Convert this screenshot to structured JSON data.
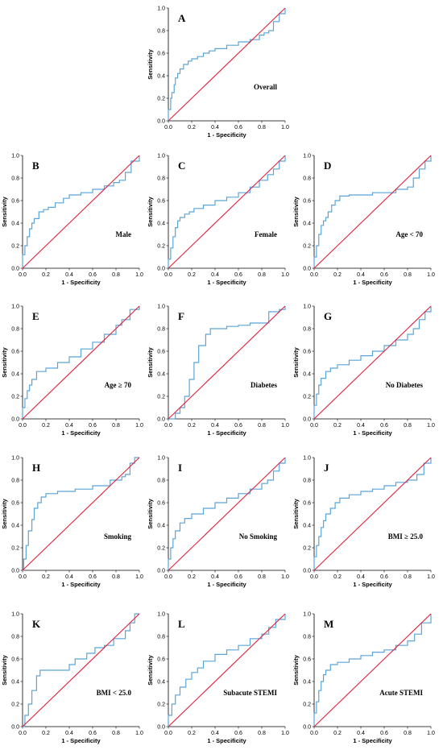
{
  "figure": {
    "colors": {
      "roc": "#5aa5d8",
      "reference": "#e0223c",
      "axis": "#000000"
    },
    "xlabel": "1 - Specificity",
    "ylabel": "Sensitivity"
  },
  "chart_data": [
    {
      "type": "line",
      "panel": "A",
      "label": "Overall",
      "xlabel": "1 - Specificity",
      "ylabel": "Sensitivity",
      "xlim": [
        0,
        1
      ],
      "ylim": [
        0,
        1
      ],
      "xticks": [
        "0.0",
        "0.2",
        "0.4",
        "0.6",
        "0.8",
        "1.0"
      ],
      "yticks": [
        "0.0",
        "0.2",
        "0.4",
        "0.6",
        "0.8",
        "1.0"
      ],
      "series": [
        {
          "role": "roc",
          "x": [
            0,
            0,
            0.02,
            0.03,
            0.05,
            0.06,
            0.08,
            0.1,
            0.13,
            0.17,
            0.2,
            0.25,
            0.3,
            0.35,
            0.4,
            0.5,
            0.6,
            0.7,
            0.78,
            0.82,
            0.86,
            0.9,
            0.95,
            1
          ],
          "y": [
            0,
            0.1,
            0.2,
            0.25,
            0.32,
            0.38,
            0.42,
            0.46,
            0.5,
            0.53,
            0.55,
            0.57,
            0.6,
            0.62,
            0.64,
            0.67,
            0.7,
            0.72,
            0.76,
            0.78,
            0.8,
            0.88,
            0.95,
            1
          ]
        },
        {
          "role": "reference",
          "x": [
            0,
            1
          ],
          "y": [
            0,
            1
          ]
        }
      ]
    },
    {
      "type": "line",
      "panel": "B",
      "label": "Male",
      "xlabel": "1 - Specificity",
      "ylabel": "Sensitivity",
      "xlim": [
        0,
        1
      ],
      "ylim": [
        0,
        1
      ],
      "xticks": [
        "0.0",
        "0.2",
        "0.4",
        "0.6",
        "0.8",
        "1.0"
      ],
      "yticks": [
        "0.0",
        "0.2",
        "0.4",
        "0.6",
        "0.8",
        "1.0"
      ],
      "series": [
        {
          "role": "roc",
          "x": [
            0,
            0,
            0.02,
            0.04,
            0.06,
            0.08,
            0.1,
            0.14,
            0.18,
            0.22,
            0.28,
            0.35,
            0.4,
            0.5,
            0.6,
            0.7,
            0.78,
            0.83,
            0.88,
            0.93,
            1
          ],
          "y": [
            0,
            0.12,
            0.2,
            0.28,
            0.35,
            0.4,
            0.44,
            0.5,
            0.52,
            0.54,
            0.58,
            0.62,
            0.65,
            0.67,
            0.7,
            0.73,
            0.76,
            0.78,
            0.85,
            0.95,
            1
          ]
        },
        {
          "role": "reference",
          "x": [
            0,
            1
          ],
          "y": [
            0,
            1
          ]
        }
      ]
    },
    {
      "type": "line",
      "panel": "C",
      "label": "Female",
      "xlabel": "1 - Specificity",
      "ylabel": "Sensitivity",
      "xlim": [
        0,
        1
      ],
      "ylim": [
        0,
        1
      ],
      "xticks": [
        "0.0",
        "0.2",
        "0.4",
        "0.6",
        "0.8",
        "1.0"
      ],
      "yticks": [
        "0.0",
        "0.2",
        "0.4",
        "0.6",
        "0.8",
        "1.0"
      ],
      "series": [
        {
          "role": "roc",
          "x": [
            0,
            0,
            0.02,
            0.04,
            0.06,
            0.08,
            0.1,
            0.14,
            0.18,
            0.22,
            0.3,
            0.4,
            0.5,
            0.6,
            0.7,
            0.78,
            0.85,
            0.9,
            0.95,
            1
          ],
          "y": [
            0,
            0.08,
            0.18,
            0.28,
            0.36,
            0.42,
            0.45,
            0.48,
            0.5,
            0.53,
            0.56,
            0.6,
            0.63,
            0.67,
            0.72,
            0.78,
            0.83,
            0.88,
            0.95,
            1
          ]
        },
        {
          "role": "reference",
          "x": [
            0,
            1
          ],
          "y": [
            0,
            1
          ]
        }
      ]
    },
    {
      "type": "line",
      "panel": "D",
      "label": "Age < 70",
      "xlabel": "1 - Specificity",
      "ylabel": "Sensitivity",
      "xlim": [
        0,
        1
      ],
      "ylim": [
        0,
        1
      ],
      "xticks": [
        "0.0",
        "0.2",
        "0.4",
        "0.6",
        "0.8",
        "1.0"
      ],
      "yticks": [
        "0.0",
        "0.2",
        "0.4",
        "0.6",
        "0.8",
        "1.0"
      ],
      "series": [
        {
          "role": "roc",
          "x": [
            0,
            0,
            0.02,
            0.04,
            0.06,
            0.08,
            0.1,
            0.12,
            0.15,
            0.18,
            0.22,
            0.3,
            0.5,
            0.7,
            0.8,
            0.85,
            0.9,
            0.95,
            1
          ],
          "y": [
            0,
            0.1,
            0.2,
            0.3,
            0.38,
            0.42,
            0.45,
            0.5,
            0.56,
            0.6,
            0.64,
            0.65,
            0.67,
            0.7,
            0.72,
            0.8,
            0.88,
            0.95,
            1
          ]
        },
        {
          "role": "reference",
          "x": [
            0,
            1
          ],
          "y": [
            0,
            1
          ]
        }
      ]
    },
    {
      "type": "line",
      "panel": "E",
      "label": "Age ≥ 70",
      "xlabel": "1 - Specificity",
      "ylabel": "Sensitivity",
      "xlim": [
        0,
        1
      ],
      "ylim": [
        0,
        1
      ],
      "xticks": [
        "0.0",
        "0.2",
        "0.4",
        "0.6",
        "0.8",
        "1.0"
      ],
      "yticks": [
        "0.0",
        "0.2",
        "0.4",
        "0.6",
        "0.8",
        "1.0"
      ],
      "series": [
        {
          "role": "roc",
          "x": [
            0,
            0,
            0.02,
            0.04,
            0.06,
            0.08,
            0.12,
            0.2,
            0.3,
            0.4,
            0.5,
            0.6,
            0.7,
            0.8,
            0.85,
            0.92,
            1
          ],
          "y": [
            0,
            0.1,
            0.18,
            0.25,
            0.3,
            0.35,
            0.42,
            0.45,
            0.5,
            0.55,
            0.62,
            0.68,
            0.75,
            0.83,
            0.88,
            0.97,
            1
          ]
        },
        {
          "role": "reference",
          "x": [
            0,
            1
          ],
          "y": [
            0,
            1
          ]
        }
      ]
    },
    {
      "type": "line",
      "panel": "F",
      "label": "Diabetes",
      "xlabel": "1 - Specificity",
      "ylabel": "Sensitivity",
      "xlim": [
        0,
        1
      ],
      "ylim": [
        0,
        1
      ],
      "xticks": [
        "0.0",
        "0.2",
        "0.4",
        "0.6",
        "0.8",
        "1.0"
      ],
      "yticks": [
        "0.0",
        "0.2",
        "0.4",
        "0.6",
        "0.8",
        "1.0"
      ],
      "series": [
        {
          "role": "roc",
          "x": [
            0,
            0.06,
            0.1,
            0.14,
            0.18,
            0.22,
            0.26,
            0.32,
            0.36,
            0.5,
            0.6,
            0.7,
            0.86,
            0.95,
            1
          ],
          "y": [
            0,
            0.05,
            0.1,
            0.2,
            0.35,
            0.5,
            0.65,
            0.75,
            0.8,
            0.82,
            0.83,
            0.85,
            0.95,
            0.97,
            1
          ]
        },
        {
          "role": "reference",
          "x": [
            0,
            1
          ],
          "y": [
            0,
            1
          ]
        }
      ]
    },
    {
      "type": "line",
      "panel": "G",
      "label": "No Diabetes",
      "xlabel": "1 - Specificity",
      "ylabel": "Sensitivity",
      "xlim": [
        0,
        1
      ],
      "ylim": [
        0,
        1
      ],
      "xticks": [
        "0.0",
        "0.2",
        "0.4",
        "0.6",
        "0.8",
        "1.0"
      ],
      "yticks": [
        "0.0",
        "0.2",
        "0.4",
        "0.6",
        "0.8",
        "1.0"
      ],
      "series": [
        {
          "role": "roc",
          "x": [
            0,
            0,
            0.02,
            0.04,
            0.06,
            0.1,
            0.14,
            0.2,
            0.3,
            0.4,
            0.5,
            0.6,
            0.7,
            0.8,
            0.85,
            0.9,
            0.95,
            1
          ],
          "y": [
            0,
            0.12,
            0.22,
            0.3,
            0.36,
            0.42,
            0.45,
            0.48,
            0.52,
            0.56,
            0.6,
            0.65,
            0.7,
            0.75,
            0.8,
            0.88,
            0.95,
            1
          ]
        },
        {
          "role": "reference",
          "x": [
            0,
            1
          ],
          "y": [
            0,
            1
          ]
        }
      ]
    },
    {
      "type": "line",
      "panel": "H",
      "label": "Smoking",
      "xlabel": "1 - Specificity",
      "ylabel": "Sensitivity",
      "xlim": [
        0,
        1
      ],
      "ylim": [
        0,
        1
      ],
      "xticks": [
        "0.0",
        "0.2",
        "0.4",
        "0.6",
        "0.8",
        "1.0"
      ],
      "yticks": [
        "0.0",
        "0.2",
        "0.4",
        "0.6",
        "0.8",
        "1.0"
      ],
      "series": [
        {
          "role": "roc",
          "x": [
            0,
            0.01,
            0.03,
            0.05,
            0.08,
            0.1,
            0.13,
            0.16,
            0.2,
            0.3,
            0.45,
            0.6,
            0.75,
            0.85,
            0.88,
            0.92,
            0.96,
            1
          ],
          "y": [
            0,
            0.1,
            0.22,
            0.35,
            0.45,
            0.55,
            0.6,
            0.65,
            0.68,
            0.7,
            0.72,
            0.75,
            0.8,
            0.83,
            0.85,
            0.95,
            1,
            1
          ]
        },
        {
          "role": "reference",
          "x": [
            0,
            1
          ],
          "y": [
            0,
            1
          ]
        }
      ]
    },
    {
      "type": "line",
      "panel": "I",
      "label": "No Smoking",
      "xlabel": "1 - Specificity",
      "ylabel": "Sensitivity",
      "xlim": [
        0,
        1
      ],
      "ylim": [
        0,
        1
      ],
      "xticks": [
        "0.0",
        "0.2",
        "0.4",
        "0.6",
        "0.8",
        "1.0"
      ],
      "yticks": [
        "0.0",
        "0.2",
        "0.4",
        "0.6",
        "0.8",
        "1.0"
      ],
      "series": [
        {
          "role": "roc",
          "x": [
            0,
            0,
            0.02,
            0.04,
            0.06,
            0.1,
            0.14,
            0.2,
            0.3,
            0.4,
            0.5,
            0.6,
            0.7,
            0.8,
            0.85,
            0.9,
            0.95,
            1
          ],
          "y": [
            0,
            0.1,
            0.2,
            0.28,
            0.35,
            0.42,
            0.46,
            0.5,
            0.55,
            0.6,
            0.64,
            0.68,
            0.72,
            0.77,
            0.8,
            0.88,
            0.95,
            1
          ]
        },
        {
          "role": "reference",
          "x": [
            0,
            1
          ],
          "y": [
            0,
            1
          ]
        }
      ]
    },
    {
      "type": "line",
      "panel": "J",
      "label": "BMI ≥ 25.0",
      "xlabel": "1 - Specificity",
      "ylabel": "Sensitivity",
      "xlim": [
        0,
        1
      ],
      "ylim": [
        0,
        1
      ],
      "xticks": [
        "0.0",
        "0.2",
        "0.4",
        "0.6",
        "0.8",
        "1.0"
      ],
      "yticks": [
        "0.0",
        "0.2",
        "0.4",
        "0.6",
        "0.8",
        "1.0"
      ],
      "series": [
        {
          "role": "roc",
          "x": [
            0,
            0,
            0.02,
            0.04,
            0.06,
            0.08,
            0.1,
            0.14,
            0.18,
            0.22,
            0.3,
            0.4,
            0.5,
            0.6,
            0.7,
            0.8,
            0.88,
            0.94,
            1
          ],
          "y": [
            0,
            0.12,
            0.22,
            0.3,
            0.38,
            0.44,
            0.5,
            0.55,
            0.6,
            0.64,
            0.67,
            0.7,
            0.72,
            0.75,
            0.78,
            0.8,
            0.85,
            0.95,
            1
          ]
        },
        {
          "role": "reference",
          "x": [
            0,
            1
          ],
          "y": [
            0,
            1
          ]
        }
      ]
    },
    {
      "type": "line",
      "panel": "K",
      "label": "BMI < 25.0",
      "xlabel": "1 - Specificity",
      "ylabel": "Sensitivity",
      "xlim": [
        0,
        1
      ],
      "ylim": [
        0,
        1
      ],
      "xticks": [
        "0.0",
        "0.2",
        "0.4",
        "0.6",
        "0.8",
        "1.0"
      ],
      "yticks": [
        "0.0",
        "0.2",
        "0.4",
        "0.6",
        "0.8",
        "1.0"
      ],
      "series": [
        {
          "role": "roc",
          "x": [
            0,
            0.02,
            0.05,
            0.08,
            0.12,
            0.15,
            0.3,
            0.4,
            0.45,
            0.55,
            0.62,
            0.7,
            0.78,
            0.88,
            0.92,
            0.96,
            1
          ],
          "y": [
            0,
            0.1,
            0.2,
            0.32,
            0.45,
            0.5,
            0.5,
            0.55,
            0.6,
            0.65,
            0.7,
            0.72,
            0.78,
            0.85,
            0.92,
            1,
            1
          ]
        },
        {
          "role": "reference",
          "x": [
            0,
            1
          ],
          "y": [
            0,
            1
          ]
        }
      ]
    },
    {
      "type": "line",
      "panel": "L",
      "label": "Subacute STEMI",
      "xlabel": "1 - Specificity",
      "ylabel": "Sensitivity",
      "xlim": [
        0,
        1
      ],
      "ylim": [
        0,
        1
      ],
      "xticks": [
        "0.0",
        "0.2",
        "0.4",
        "0.6",
        "0.8",
        "1.0"
      ],
      "yticks": [
        "0.0",
        "0.2",
        "0.4",
        "0.6",
        "0.8",
        "1.0"
      ],
      "series": [
        {
          "role": "roc",
          "x": [
            0,
            0,
            0.03,
            0.06,
            0.1,
            0.15,
            0.2,
            0.25,
            0.3,
            0.4,
            0.5,
            0.6,
            0.7,
            0.8,
            0.86,
            0.92,
            1
          ],
          "y": [
            0,
            0.1,
            0.2,
            0.28,
            0.35,
            0.42,
            0.48,
            0.52,
            0.58,
            0.64,
            0.68,
            0.72,
            0.78,
            0.82,
            0.88,
            0.95,
            1
          ]
        },
        {
          "role": "reference",
          "x": [
            0,
            1
          ],
          "y": [
            0,
            1
          ]
        }
      ]
    },
    {
      "type": "line",
      "panel": "M",
      "label": "Acute STEMI",
      "xlabel": "1 - Specificity",
      "ylabel": "Sensitivity",
      "xlim": [
        0,
        1
      ],
      "ylim": [
        0,
        1
      ],
      "xticks": [
        "0.0",
        "0.2",
        "0.4",
        "0.6",
        "0.8",
        "1.0"
      ],
      "yticks": [
        "0.0",
        "0.2",
        "0.4",
        "0.6",
        "0.8",
        "1.0"
      ],
      "series": [
        {
          "role": "roc",
          "x": [
            0,
            0,
            0.02,
            0.04,
            0.06,
            0.08,
            0.1,
            0.14,
            0.2,
            0.3,
            0.4,
            0.5,
            0.6,
            0.7,
            0.8,
            0.86,
            0.92,
            1
          ],
          "y": [
            0,
            0.12,
            0.22,
            0.32,
            0.4,
            0.46,
            0.5,
            0.55,
            0.57,
            0.6,
            0.63,
            0.66,
            0.68,
            0.72,
            0.76,
            0.82,
            0.92,
            1
          ]
        },
        {
          "role": "reference",
          "x": [
            0,
            1
          ],
          "y": [
            0,
            1
          ]
        }
      ]
    }
  ]
}
